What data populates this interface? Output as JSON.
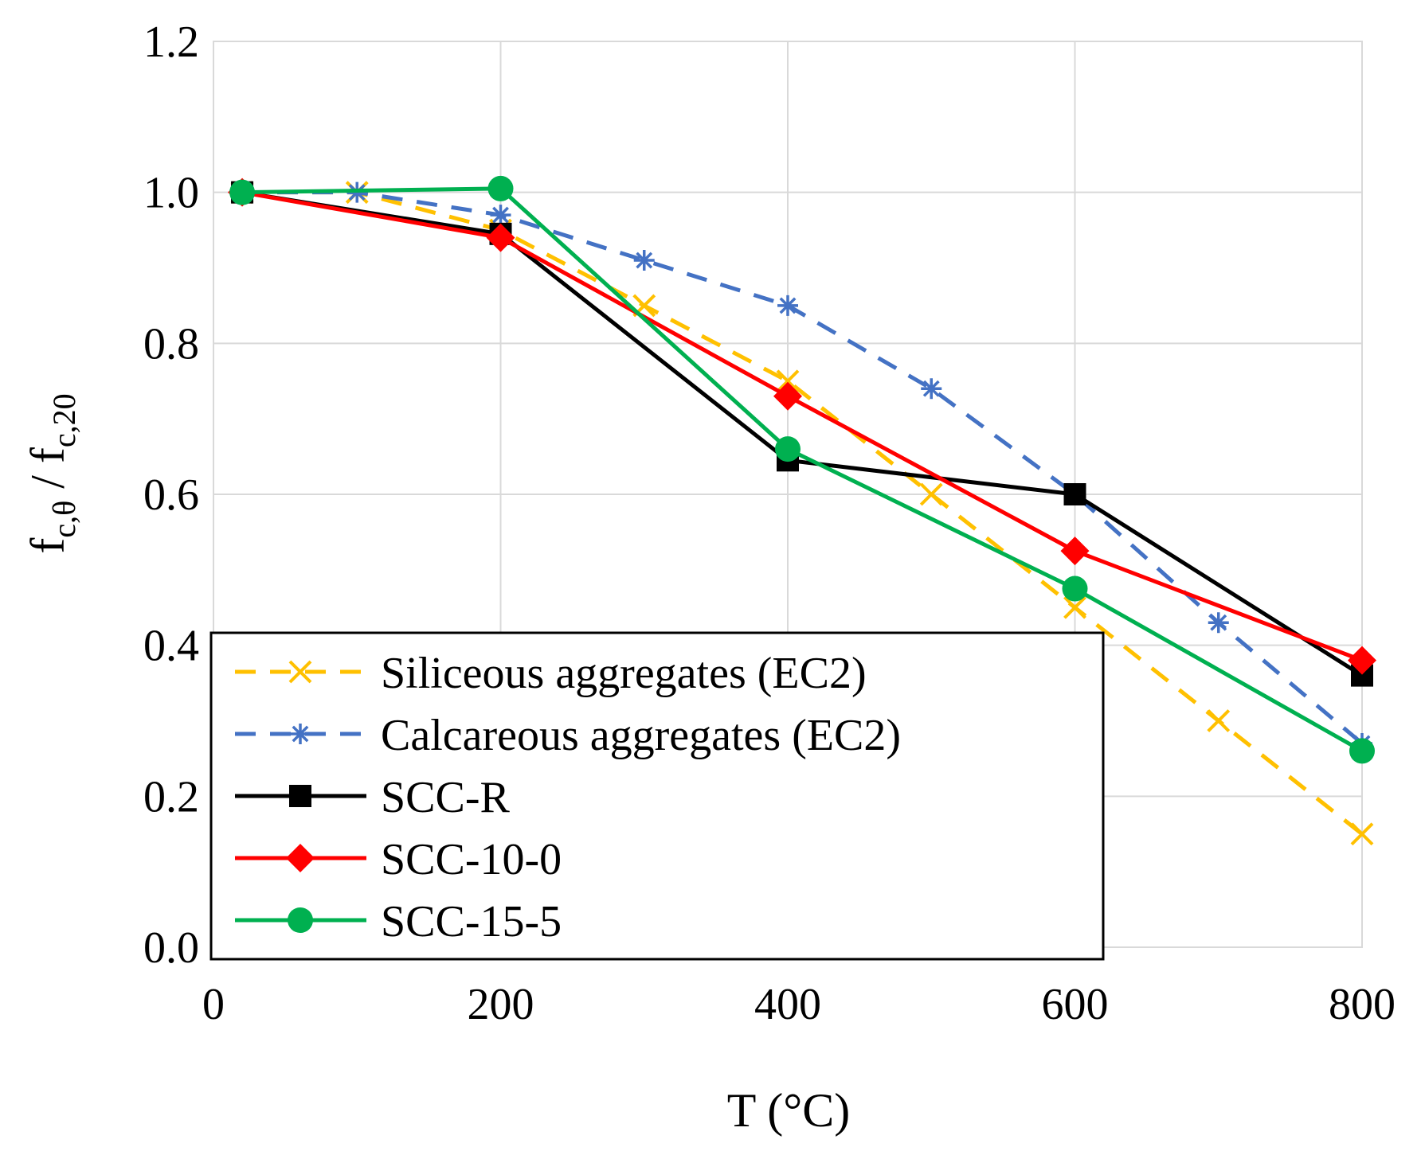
{
  "chart_data": {
    "type": "line",
    "title": "",
    "xlabel": "T (°C)",
    "ylabel": {
      "base1": "f",
      "sub1": "c,θ",
      "separator": " / ",
      "base2": "f",
      "sub2": "c,20"
    },
    "xlim": [
      0,
      800
    ],
    "ylim": [
      0,
      1.2
    ],
    "xticks": [
      "0",
      "200",
      "400",
      "600",
      "800"
    ],
    "yticks": [
      "0.0",
      "0.2",
      "0.4",
      "0.6",
      "0.8",
      "1.0",
      "1.2"
    ],
    "grid": true,
    "legend_position": "bottom-left",
    "series": [
      {
        "name": "Siliceous aggregates (EC2)",
        "color": "#FFC000",
        "dash": true,
        "marker": "x",
        "x": [
          20,
          100,
          200,
          300,
          400,
          500,
          600,
          700,
          800
        ],
        "y": [
          1.0,
          1.0,
          0.95,
          0.85,
          0.75,
          0.6,
          0.45,
          0.3,
          0.15
        ]
      },
      {
        "name": "Calcareous aggregates (EC2)",
        "color": "#4472C4",
        "dash": true,
        "marker": "star",
        "x": [
          20,
          100,
          200,
          300,
          400,
          500,
          600,
          700,
          800
        ],
        "y": [
          1.0,
          1.0,
          0.97,
          0.91,
          0.85,
          0.74,
          0.6,
          0.43,
          0.27
        ]
      },
      {
        "name": "SCC-R",
        "color": "#000000",
        "dash": false,
        "marker": "square",
        "x": [
          20,
          200,
          400,
          600,
          800
        ],
        "y": [
          1.0,
          0.945,
          0.645,
          0.6,
          0.36
        ]
      },
      {
        "name": "SCC-10-0",
        "color": "#FF0000",
        "dash": false,
        "marker": "diamond",
        "x": [
          20,
          200,
          400,
          600,
          800
        ],
        "y": [
          1.0,
          0.94,
          0.73,
          0.525,
          0.38
        ]
      },
      {
        "name": "SCC-15-5",
        "color": "#00B050",
        "dash": false,
        "marker": "circle",
        "x": [
          20,
          200,
          400,
          600,
          800
        ],
        "y": [
          1.0,
          1.005,
          0.66,
          0.475,
          0.26
        ]
      }
    ]
  }
}
